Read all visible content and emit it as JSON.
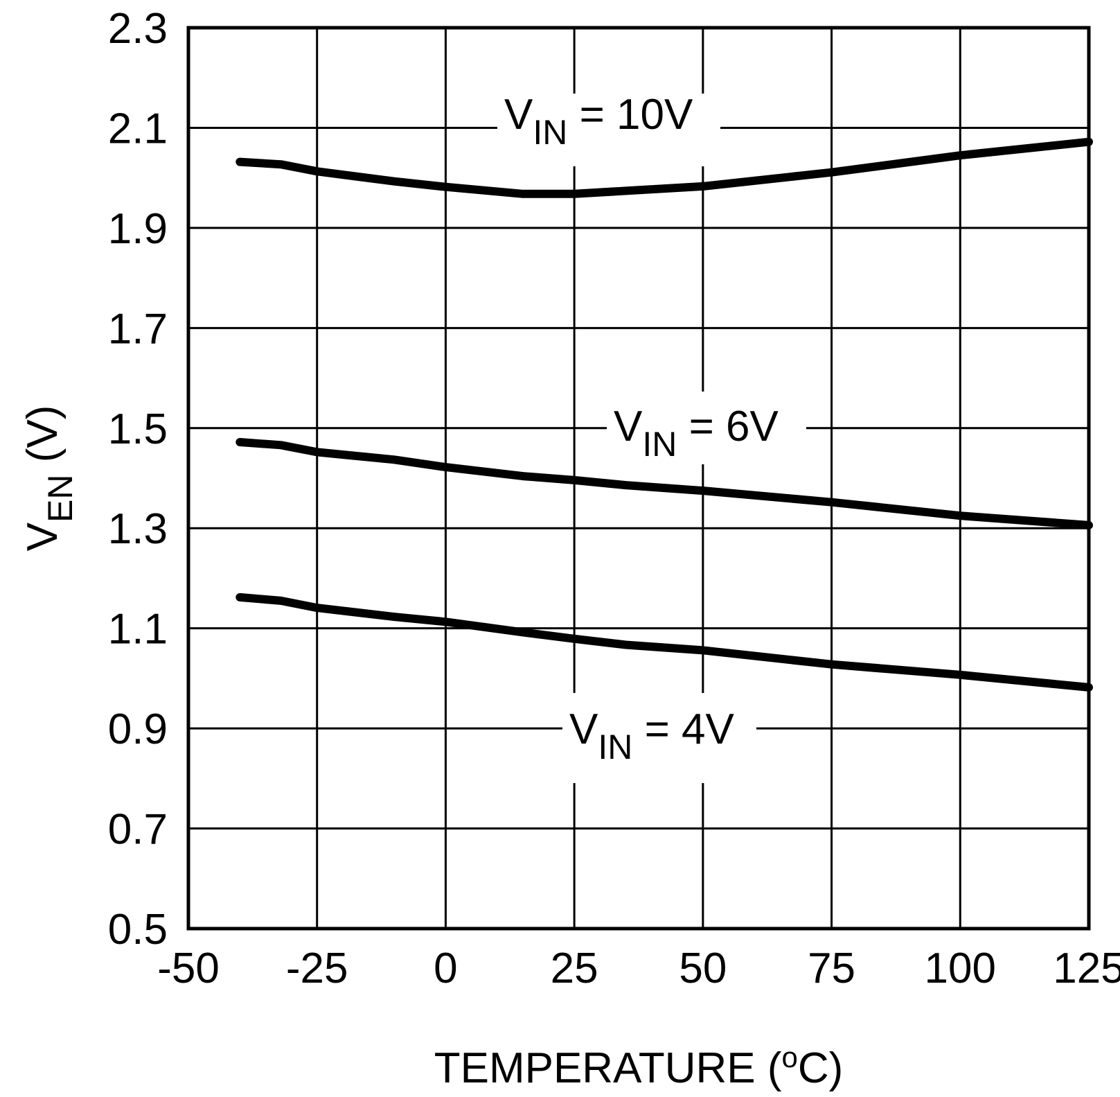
{
  "chart_data": {
    "type": "line",
    "title": "",
    "xlabel": "TEMPERATURE (",
    "xlabel_sup": "o",
    "xlabel_end": "C)",
    "ylabel_main": "V",
    "ylabel_sub": "EN",
    "ylabel_unit": " (V)",
    "xlim": [
      -50,
      125
    ],
    "ylim": [
      0.5,
      2.3
    ],
    "xticks": [
      -50,
      -25,
      0,
      25,
      50,
      75,
      100,
      125
    ],
    "xtick_labels": [
      "-50",
      "-25",
      "0",
      "25",
      "50",
      "75",
      "100",
      "125"
    ],
    "yticks": [
      0.5,
      0.7,
      0.9,
      1.1,
      1.3,
      1.5,
      1.7,
      1.9,
      2.1,
      2.3
    ],
    "ytick_labels": [
      "0.5",
      "0.7",
      "0.9",
      "1.1",
      "1.3",
      "1.5",
      "1.7",
      "1.9",
      "2.1",
      "2.3"
    ],
    "grid": true,
    "series": [
      {
        "name": "VIN = 10V",
        "label_main": "V",
        "label_sub": "IN",
        "label_rest": " = 10V",
        "x": [
          -40,
          -32,
          -25,
          -10,
          0,
          15,
          25,
          35,
          50,
          75,
          100,
          125
        ],
        "y": [
          2.032,
          2.027,
          2.013,
          1.993,
          1.982,
          1.968,
          1.968,
          1.974,
          1.983,
          2.011,
          2.045,
          2.072
        ]
      },
      {
        "name": "VIN = 6V",
        "label_main": "V",
        "label_sub": "IN",
        "label_rest": " = 6V",
        "x": [
          -40,
          -32,
          -25,
          -10,
          0,
          15,
          25,
          35,
          50,
          75,
          100,
          125
        ],
        "y": [
          1.472,
          1.466,
          1.452,
          1.437,
          1.422,
          1.404,
          1.396,
          1.386,
          1.375,
          1.352,
          1.325,
          1.306
        ]
      },
      {
        "name": "VIN = 4V",
        "label_main": "V",
        "label_sub": "IN",
        "label_rest": " = 4V",
        "x": [
          -40,
          -32,
          -25,
          -10,
          0,
          15,
          25,
          35,
          50,
          75,
          100,
          125
        ],
        "y": [
          1.162,
          1.155,
          1.141,
          1.123,
          1.113,
          1.092,
          1.079,
          1.067,
          1.056,
          1.028,
          1.007,
          0.982
        ]
      }
    ]
  }
}
